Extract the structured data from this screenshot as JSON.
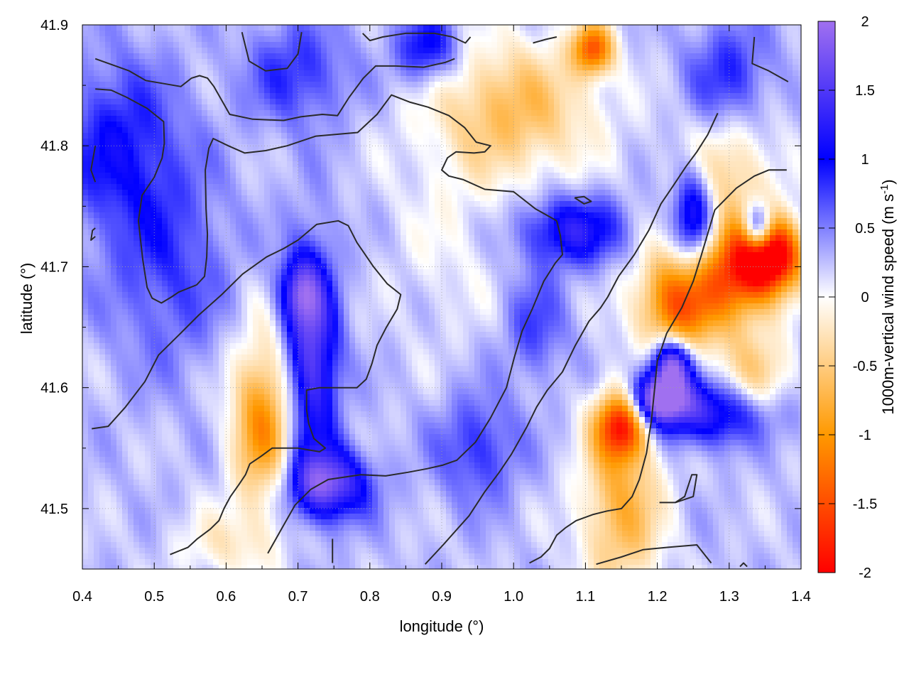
{
  "chart_data": {
    "type": "heatmap",
    "title": "",
    "xlabel": "longitude (°)",
    "ylabel": "latitude (°)",
    "colorbar_label_main": "1000m-vertical wind speed (m s",
    "colorbar_label_sup": "-1",
    "colorbar_label_end": ")",
    "xlim": [
      0.4,
      1.4
    ],
    "ylim": [
      41.45,
      41.9
    ],
    "clim": [
      -2,
      2
    ],
    "xticks": [
      0.4,
      0.5,
      0.6,
      0.7,
      0.8,
      0.9,
      1.0,
      1.1,
      1.2,
      1.3,
      1.4
    ],
    "xtick_labels": [
      "0.4",
      "0.5",
      "0.6",
      "0.7",
      "0.8",
      "0.9",
      "1.0",
      "1.1",
      "1.2",
      "1.3",
      "1.4"
    ],
    "yticks": [
      41.5,
      41.6,
      41.7,
      41.8,
      41.9
    ],
    "ytick_labels": [
      "41.5",
      "41.6",
      "41.7",
      "41.8",
      "41.9"
    ],
    "cticks": [
      -2,
      -1.5,
      -1,
      -0.5,
      0,
      0.5,
      1,
      1.5,
      2
    ],
    "ctick_labels": [
      "-2",
      "-1.5",
      "-1",
      "-0.5",
      "0",
      "0.5",
      "1",
      "1.5",
      "2"
    ],
    "grid": true,
    "colormap": [
      {
        "value": -2,
        "color": "#ff0000"
      },
      {
        "value": -1,
        "color": "#ff9900"
      },
      {
        "value": 0,
        "color": "#ffffff"
      },
      {
        "value": 1,
        "color": "#0000ff"
      },
      {
        "value": 2,
        "color": "#a070f0"
      }
    ],
    "field_features": [
      {
        "lon": 0.45,
        "lat": 41.8,
        "sx": 0.06,
        "sy": 0.05,
        "amp": 0.7
      },
      {
        "lon": 0.52,
        "lat": 41.7,
        "sx": 0.06,
        "sy": 0.06,
        "amp": 0.5
      },
      {
        "lon": 0.72,
        "lat": 41.63,
        "sx": 0.025,
        "sy": 0.06,
        "amp": 1.4
      },
      {
        "lon": 0.74,
        "lat": 41.52,
        "sx": 0.04,
        "sy": 0.02,
        "amp": 1.5
      },
      {
        "lon": 0.65,
        "lat": 41.57,
        "sx": 0.03,
        "sy": 0.05,
        "amp": -1.3
      },
      {
        "lon": 0.7,
        "lat": 41.68,
        "sx": 0.02,
        "sy": 0.02,
        "amp": 0.9
      },
      {
        "lon": 1.08,
        "lat": 41.73,
        "sx": 0.05,
        "sy": 0.02,
        "amp": 1.0
      },
      {
        "lon": 1.0,
        "lat": 41.83,
        "sx": 0.08,
        "sy": 0.04,
        "amp": -0.9
      },
      {
        "lon": 0.7,
        "lat": 41.86,
        "sx": 0.05,
        "sy": 0.03,
        "amp": 0.6
      },
      {
        "lon": 0.88,
        "lat": 41.88,
        "sx": 0.03,
        "sy": 0.02,
        "amp": 0.9
      },
      {
        "lon": 1.11,
        "lat": 41.88,
        "sx": 0.02,
        "sy": 0.015,
        "amp": -1.6
      },
      {
        "lon": 1.15,
        "lat": 41.57,
        "sx": 0.025,
        "sy": 0.02,
        "amp": -2.0
      },
      {
        "lon": 1.2,
        "lat": 41.59,
        "sx": 0.03,
        "sy": 0.015,
        "amp": 1.9
      },
      {
        "lon": 1.22,
        "lat": 41.62,
        "sx": 0.02,
        "sy": 0.015,
        "amp": 1.8
      },
      {
        "lon": 1.29,
        "lat": 41.58,
        "sx": 0.06,
        "sy": 0.02,
        "amp": 1.3
      },
      {
        "lon": 1.23,
        "lat": 41.67,
        "sx": 0.04,
        "sy": 0.03,
        "amp": -1.7
      },
      {
        "lon": 1.32,
        "lat": 41.7,
        "sx": 0.04,
        "sy": 0.03,
        "amp": -1.8
      },
      {
        "lon": 1.36,
        "lat": 41.71,
        "sx": 0.03,
        "sy": 0.02,
        "amp": -2.0
      },
      {
        "lon": 1.34,
        "lat": 41.73,
        "sx": 0.015,
        "sy": 0.015,
        "amp": 1.9
      },
      {
        "lon": 1.25,
        "lat": 41.74,
        "sx": 0.02,
        "sy": 0.03,
        "amp": 1.2
      },
      {
        "lon": 1.15,
        "lat": 41.5,
        "sx": 0.04,
        "sy": 0.05,
        "amp": -1.0
      },
      {
        "lon": 1.33,
        "lat": 41.6,
        "sx": 0.04,
        "sy": 0.03,
        "amp": -0.9
      },
      {
        "lon": 1.3,
        "lat": 41.78,
        "sx": 0.05,
        "sy": 0.03,
        "amp": -0.6
      },
      {
        "lon": 1.3,
        "lat": 41.86,
        "sx": 0.04,
        "sy": 0.03,
        "amp": 0.6
      },
      {
        "lon": 0.6,
        "lat": 41.47,
        "sx": 0.05,
        "sy": 0.02,
        "amp": -0.4
      },
      {
        "lon": 0.91,
        "lat": 41.72,
        "sx": 0.06,
        "sy": 0.06,
        "amp": -0.2
      },
      {
        "lon": 0.95,
        "lat": 41.55,
        "sx": 0.04,
        "sy": 0.03,
        "amp": 0.6
      },
      {
        "lon": 1.03,
        "lat": 41.65,
        "sx": 0.03,
        "sy": 0.03,
        "amp": 0.5
      }
    ],
    "contours": [
      [
        [
          0.418,
          41.872
        ],
        [
          0.465,
          41.862
        ],
        [
          0.488,
          41.854
        ],
        [
          0.537,
          41.849
        ],
        [
          0.552,
          41.856
        ],
        [
          0.563,
          41.858
        ],
        [
          0.574,
          41.856
        ],
        [
          0.583,
          41.849
        ],
        [
          0.605,
          41.826
        ],
        [
          0.637,
          41.822
        ],
        [
          0.68,
          41.821
        ],
        [
          0.704,
          41.824
        ],
        [
          0.734,
          41.826
        ],
        [
          0.755,
          41.825
        ],
        [
          0.771,
          41.84
        ],
        [
          0.791,
          41.856
        ],
        [
          0.808,
          41.866
        ],
        [
          0.836,
          41.866
        ],
        [
          0.875,
          41.865
        ],
        [
          0.905,
          41.869
        ],
        [
          0.918,
          41.872
        ]
      ],
      [
        [
          0.418,
          41.847
        ],
        [
          0.44,
          41.846
        ],
        [
          0.462,
          41.84
        ],
        [
          0.49,
          41.831
        ],
        [
          0.513,
          41.82
        ],
        [
          0.514,
          41.802
        ],
        [
          0.511,
          41.79
        ],
        [
          0.5,
          41.774
        ],
        [
          0.483,
          41.759
        ],
        [
          0.478,
          41.738
        ],
        [
          0.484,
          41.706
        ],
        [
          0.49,
          41.683
        ],
        [
          0.497,
          41.674
        ],
        [
          0.51,
          41.67
        ],
        [
          0.524,
          41.675
        ],
        [
          0.534,
          41.679
        ],
        [
          0.559,
          41.685
        ],
        [
          0.57,
          41.692
        ],
        [
          0.573,
          41.708
        ],
        [
          0.574,
          41.727
        ],
        [
          0.572,
          41.748
        ],
        [
          0.571,
          41.78
        ],
        [
          0.576,
          41.798
        ],
        [
          0.582,
          41.806
        ],
        [
          0.603,
          41.8
        ],
        [
          0.626,
          41.794
        ],
        [
          0.655,
          41.796
        ],
        [
          0.685,
          41.8
        ],
        [
          0.725,
          41.808
        ],
        [
          0.783,
          41.811
        ],
        [
          0.81,
          41.826
        ],
        [
          0.83,
          41.842
        ],
        [
          0.856,
          41.836
        ],
        [
          0.881,
          41.832
        ],
        [
          0.91,
          41.825
        ],
        [
          0.932,
          41.815
        ],
        [
          0.948,
          41.803
        ],
        [
          0.968,
          41.8
        ],
        [
          0.96,
          41.795
        ],
        [
          0.945,
          41.794
        ],
        [
          0.92,
          41.795
        ],
        [
          0.908,
          41.79
        ],
        [
          0.9,
          41.78
        ],
        [
          0.91,
          41.775
        ],
        [
          0.93,
          41.772
        ],
        [
          0.96,
          41.764
        ],
        [
          1.0,
          41.762
        ],
        [
          1.03,
          41.748
        ],
        [
          1.06,
          41.738
        ]
      ],
      [
        [
          0.418,
          41.725
        ],
        [
          0.412,
          41.722
        ],
        [
          0.414,
          41.73
        ],
        [
          0.418,
          41.732
        ]
      ],
      [
        [
          0.418,
          41.8
        ],
        [
          0.412,
          41.78
        ],
        [
          0.418,
          41.77
        ]
      ],
      [
        [
          0.413,
          41.566
        ],
        [
          0.436,
          41.568
        ],
        [
          0.46,
          41.584
        ],
        [
          0.487,
          41.605
        ],
        [
          0.506,
          41.627
        ],
        [
          0.535,
          41.644
        ],
        [
          0.562,
          41.66
        ],
        [
          0.594,
          41.677
        ],
        [
          0.623,
          41.694
        ],
        [
          0.656,
          41.708
        ],
        [
          0.68,
          41.715
        ],
        [
          0.7,
          41.722
        ],
        [
          0.726,
          41.735
        ],
        [
          0.756,
          41.738
        ],
        [
          0.77,
          41.734
        ],
        [
          0.782,
          41.72
        ],
        [
          0.805,
          41.7
        ],
        [
          0.824,
          41.686
        ],
        [
          0.843,
          41.677
        ],
        [
          0.838,
          41.665
        ],
        [
          0.823,
          41.65
        ],
        [
          0.81,
          41.635
        ],
        [
          0.803,
          41.62
        ],
        [
          0.795,
          41.607
        ],
        [
          0.782,
          41.6
        ],
        [
          0.758,
          41.6
        ],
        [
          0.73,
          41.6
        ],
        [
          0.712,
          41.598
        ],
        [
          0.712,
          41.59
        ],
        [
          0.712,
          41.582
        ],
        [
          0.715,
          41.57
        ],
        [
          0.722,
          41.558
        ],
        [
          0.738,
          41.55
        ],
        [
          0.73,
          41.547
        ],
        [
          0.7,
          41.55
        ],
        [
          0.683,
          41.55
        ],
        [
          0.664,
          41.55
        ],
        [
          0.648,
          41.543
        ],
        [
          0.633,
          41.537
        ],
        [
          0.627,
          41.528
        ],
        [
          0.618,
          41.52
        ],
        [
          0.606,
          41.51
        ],
        [
          0.597,
          41.5
        ],
        [
          0.59,
          41.49
        ],
        [
          0.578,
          41.483
        ],
        [
          0.56,
          41.475
        ],
        [
          0.547,
          41.468
        ],
        [
          0.522,
          41.462
        ]
      ],
      [
        [
          0.748,
          41.475
        ],
        [
          0.748,
          41.46
        ],
        [
          0.748,
          41.455
        ]
      ],
      [
        [
          0.658,
          41.463
        ],
        [
          0.677,
          41.483
        ],
        [
          0.696,
          41.503
        ],
        [
          0.718,
          41.516
        ],
        [
          0.742,
          41.524
        ],
        [
          0.787,
          41.528
        ],
        [
          0.822,
          41.527
        ],
        [
          0.853,
          41.53
        ],
        [
          0.88,
          41.533
        ],
        [
          0.902,
          41.536
        ],
        [
          0.921,
          41.54
        ],
        [
          0.947,
          41.555
        ],
        [
          0.968,
          41.575
        ],
        [
          0.99,
          41.6
        ],
        [
          1.001,
          41.625
        ],
        [
          1.012,
          41.647
        ],
        [
          1.026,
          41.665
        ],
        [
          1.042,
          41.688
        ],
        [
          1.058,
          41.703
        ],
        [
          1.068,
          41.71
        ],
        [
          1.065,
          41.726
        ],
        [
          1.06,
          41.738
        ]
      ],
      [
        [
          0.877,
          41.454
        ],
        [
          0.902,
          41.47
        ],
        [
          0.938,
          41.494
        ],
        [
          0.96,
          41.514
        ],
        [
          0.98,
          41.53
        ],
        [
          0.997,
          41.545
        ],
        [
          1.018,
          41.567
        ],
        [
          1.032,
          41.584
        ],
        [
          1.047,
          41.598
        ],
        [
          1.068,
          41.613
        ],
        [
          1.086,
          41.635
        ],
        [
          1.105,
          41.655
        ],
        [
          1.121,
          41.666
        ],
        [
          1.131,
          41.675
        ],
        [
          1.146,
          41.692
        ],
        [
          1.168,
          41.71
        ],
        [
          1.188,
          41.73
        ],
        [
          1.205,
          41.752
        ],
        [
          1.221,
          41.766
        ],
        [
          1.24,
          41.783
        ],
        [
          1.255,
          41.795
        ],
        [
          1.27,
          41.809
        ],
        [
          1.284,
          41.827
        ]
      ],
      [
        [
          1.022,
          41.455
        ],
        [
          1.038,
          41.46
        ],
        [
          1.05,
          41.467
        ],
        [
          1.06,
          41.478
        ],
        [
          1.072,
          41.484
        ],
        [
          1.087,
          41.49
        ],
        [
          1.11,
          41.495
        ],
        [
          1.13,
          41.498
        ],
        [
          1.15,
          41.5
        ],
        [
          1.165,
          41.51
        ],
        [
          1.175,
          41.524
        ],
        [
          1.185,
          41.546
        ],
        [
          1.192,
          41.574
        ],
        [
          1.196,
          41.598
        ],
        [
          1.2,
          41.622
        ],
        [
          1.213,
          41.645
        ],
        [
          1.234,
          41.666
        ],
        [
          1.25,
          41.688
        ],
        [
          1.26,
          41.707
        ],
        [
          1.27,
          41.727
        ],
        [
          1.28,
          41.747
        ],
        [
          1.31,
          41.765
        ],
        [
          1.335,
          41.775
        ],
        [
          1.355,
          41.78
        ],
        [
          1.38,
          41.78
        ]
      ],
      [
        [
          1.085,
          41.757
        ],
        [
          1.098,
          41.758
        ],
        [
          1.108,
          41.754
        ],
        [
          1.098,
          41.752
        ],
        [
          1.085,
          41.757
        ]
      ],
      [
        [
          1.203,
          41.505
        ],
        [
          1.225,
          41.505
        ],
        [
          1.25,
          41.51
        ],
        [
          1.255,
          41.528
        ],
        [
          1.248,
          41.528
        ],
        [
          1.238,
          41.51
        ],
        [
          1.225,
          41.505
        ]
      ],
      [
        [
          1.115,
          41.454
        ],
        [
          1.15,
          41.46
        ],
        [
          1.18,
          41.466
        ],
        [
          1.215,
          41.468
        ],
        [
          1.255,
          41.47
        ],
        [
          1.275,
          41.455
        ]
      ],
      [
        [
          1.335,
          41.89
        ],
        [
          1.332,
          41.868
        ],
        [
          1.355,
          41.862
        ],
        [
          1.382,
          41.853
        ]
      ],
      [
        [
          0.622,
          41.894
        ],
        [
          0.632,
          41.87
        ],
        [
          0.655,
          41.862
        ],
        [
          0.685,
          41.864
        ],
        [
          0.7,
          41.876
        ],
        [
          0.705,
          41.894
        ]
      ],
      [
        [
          0.79,
          41.893
        ],
        [
          0.8,
          41.887
        ],
        [
          0.818,
          41.89
        ],
        [
          0.85,
          41.893
        ],
        [
          0.89,
          41.893
        ]
      ],
      [
        [
          0.89,
          41.893
        ],
        [
          0.915,
          41.89
        ],
        [
          0.933,
          41.885
        ],
        [
          0.94,
          41.89
        ]
      ],
      [
        [
          1.027,
          41.885
        ],
        [
          1.045,
          41.888
        ],
        [
          1.06,
          41.89
        ]
      ],
      [
        [
          1.315,
          41.452
        ],
        [
          1.32,
          41.455
        ],
        [
          1.325,
          41.452
        ]
      ]
    ]
  }
}
